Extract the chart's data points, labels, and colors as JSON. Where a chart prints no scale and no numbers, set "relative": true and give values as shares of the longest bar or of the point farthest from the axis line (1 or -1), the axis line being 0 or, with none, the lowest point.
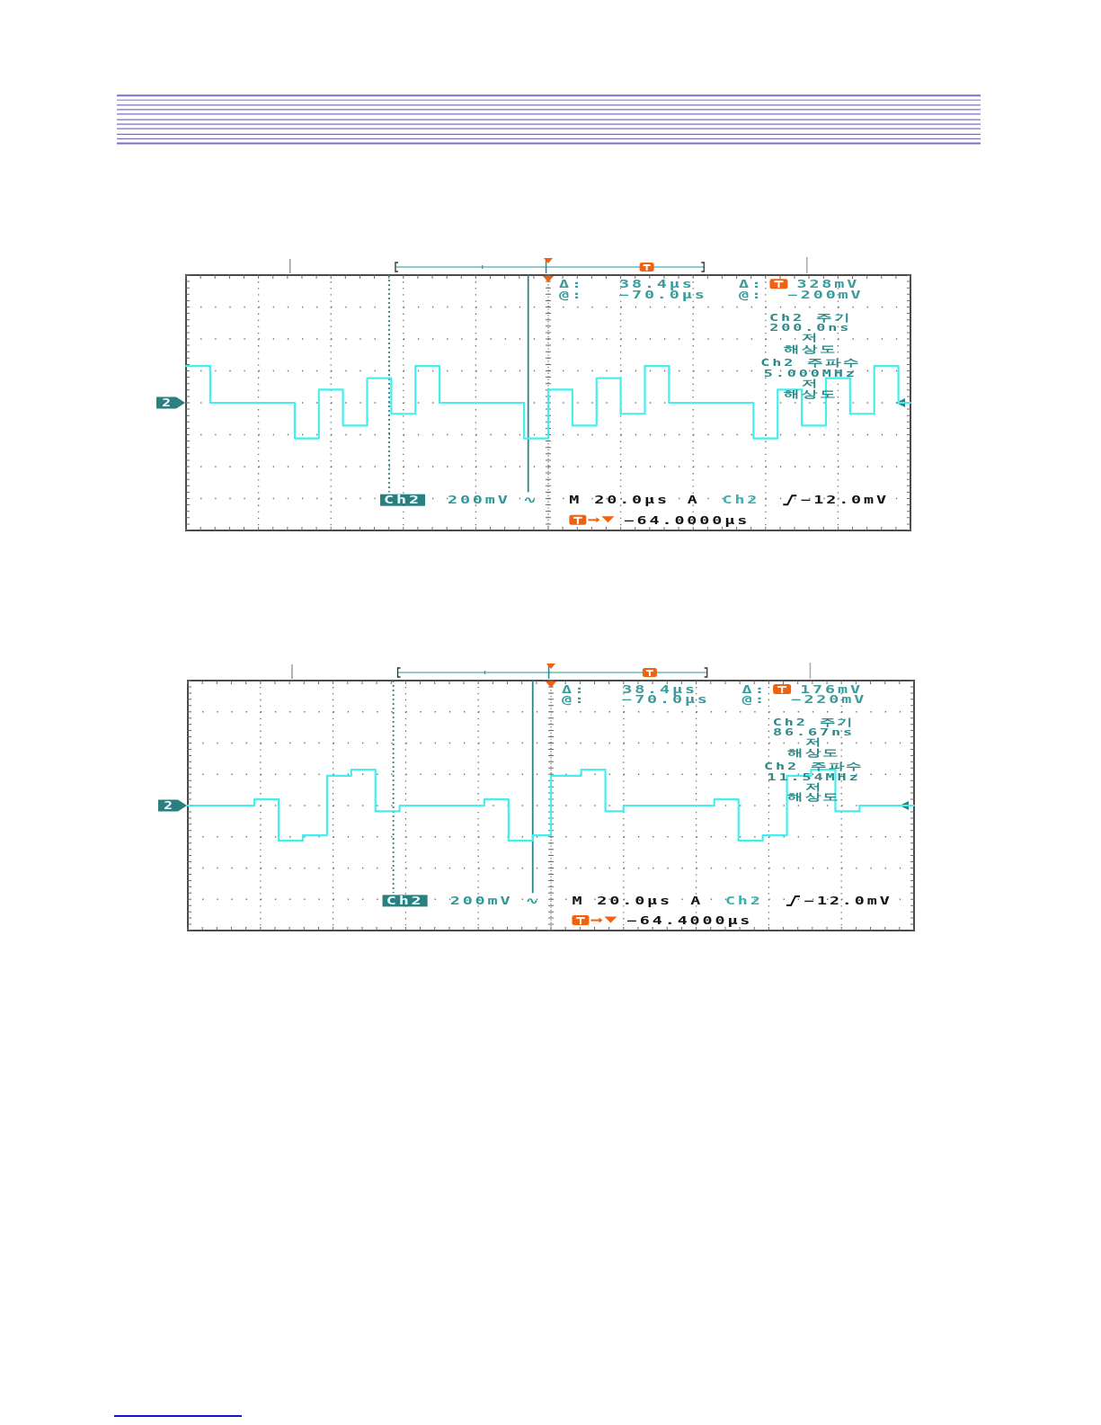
{
  "chart_data": [
    {
      "type": "step",
      "relative": true,
      "color": "#45eeee",
      "grid": true,
      "categories": [
        null,
        null,
        null,
        null,
        null,
        null,
        null,
        null,
        null,
        null,
        null,
        null,
        null,
        null,
        null,
        null,
        null,
        null,
        null,
        null,
        null,
        null,
        null,
        null,
        null,
        null,
        null,
        null,
        null,
        null,
        null,
        null,
        null,
        null,
        null,
        null,
        null,
        null,
        null,
        null,
        null,
        null,
        null,
        null,
        null,
        null,
        null,
        null,
        null,
        null,
        null,
        null,
        null,
        null,
        null,
        null,
        null,
        null,
        null,
        null,
        null,
        null,
        null,
        null,
        null,
        null,
        null,
        null,
        null,
        null,
        null,
        null,
        null,
        null,
        null,
        null,
        null,
        null,
        null,
        null,
        null,
        null,
        null,
        null,
        null,
        null,
        null,
        null,
        null,
        null,
        null,
        null,
        null,
        null,
        null,
        null,
        null,
        null,
        null,
        null,
        null,
        null,
        null,
        null,
        null,
        null,
        null,
        null,
        null,
        null,
        null,
        null,
        null,
        null,
        null,
        null,
        null,
        null,
        null,
        null,
        null
      ],
      "values": [
        1,
        1,
        1,
        1,
        0,
        0,
        0,
        0,
        0,
        0,
        0,
        0,
        0,
        0,
        0,
        0,
        0,
        0,
        -0.97,
        -0.97,
        -0.97,
        -0.97,
        0.36,
        0.36,
        0.36,
        0.36,
        -0.62,
        -0.62,
        -0.62,
        -0.62,
        0.67,
        0.67,
        0.67,
        0.67,
        -0.3,
        -0.3,
        -0.3,
        -0.3,
        1,
        1,
        1,
        1,
        0,
        0,
        0,
        0,
        0,
        0,
        0,
        0,
        0,
        0,
        0,
        0,
        0,
        0,
        -0.97,
        -0.97,
        -0.97,
        -0.97,
        0.36,
        0.36,
        0.36,
        0.36,
        -0.62,
        -0.62,
        -0.62,
        -0.62,
        0.67,
        0.67,
        0.67,
        0.67,
        -0.3,
        -0.3,
        -0.3,
        -0.3,
        1,
        1,
        1,
        1,
        0,
        0,
        0,
        0,
        0,
        0,
        0,
        0,
        0,
        0,
        0,
        0,
        0,
        0,
        -0.97,
        -0.97,
        -0.97,
        -0.97,
        0.36,
        0.36,
        0.36,
        0.36,
        -0.62,
        -0.62,
        -0.62,
        -0.62,
        0.67,
        0.67,
        0.67,
        0.67,
        -0.3,
        -0.3,
        -0.3,
        -0.3,
        1,
        1,
        1,
        1,
        0,
        0,
        0
      ],
      "annotations": [
        "Δ:",
        "38.4µs",
        "@:",
        "−70.0µs",
        "Δ:",
        "328mV",
        "@:",
        "−200mV",
        "Ch2 주기",
        "200.0ns",
        "저",
        "해상도",
        "Ch2 주파수",
        "5.000MHz",
        "저",
        "해상도",
        "Ch2",
        "200mV ∿",
        "M 20.0µs",
        "A",
        "Ch2",
        "−12.0mV",
        "−64.0000µs",
        "2"
      ]
    },
    {
      "type": "step",
      "relative": true,
      "color": "#45eeee",
      "grid": true,
      "categories": [
        null,
        null,
        null,
        null,
        null,
        null,
        null,
        null,
        null,
        null,
        null,
        null,
        null,
        null,
        null,
        null,
        null,
        null,
        null,
        null,
        null,
        null,
        null,
        null,
        null,
        null,
        null,
        null,
        null,
        null,
        null,
        null,
        null,
        null,
        null,
        null,
        null,
        null,
        null,
        null,
        null,
        null,
        null,
        null,
        null,
        null,
        null,
        null,
        null,
        null,
        null,
        null,
        null,
        null,
        null,
        null,
        null,
        null,
        null,
        null,
        null,
        null,
        null,
        null,
        null,
        null,
        null,
        null,
        null,
        null,
        null,
        null,
        null,
        null,
        null,
        null,
        null,
        null,
        null,
        null,
        null,
        null,
        null,
        null,
        null,
        null,
        null,
        null,
        null,
        null,
        null,
        null,
        null,
        null,
        null,
        null,
        null,
        null,
        null,
        null,
        null,
        null,
        null,
        null,
        null,
        null,
        null,
        null,
        null,
        null,
        null,
        null,
        null,
        null,
        null,
        null,
        null,
        null,
        null,
        null,
        null
      ],
      "values": [
        0,
        0,
        0,
        0,
        0,
        0,
        0,
        0,
        0,
        0,
        0,
        0.17,
        0.17,
        0.17,
        0.17,
        -0.98,
        -0.98,
        -0.98,
        -0.98,
        -0.83,
        -0.83,
        -0.83,
        -0.83,
        0.83,
        0.83,
        0.83,
        0.83,
        1,
        1,
        1,
        1,
        -0.16,
        -0.16,
        -0.16,
        -0.16,
        0,
        0,
        0,
        0,
        0,
        0,
        0,
        0,
        0,
        0,
        0,
        0,
        0,
        0,
        0.17,
        0.17,
        0.17,
        0.17,
        -0.98,
        -0.98,
        -0.98,
        -0.98,
        -0.83,
        -0.83,
        -0.83,
        0.83,
        0.83,
        0.83,
        0.83,
        0.83,
        1,
        1,
        1,
        1,
        -0.16,
        -0.16,
        -0.16,
        0,
        0,
        0,
        0,
        0,
        0,
        0,
        0,
        0,
        0,
        0,
        0,
        0,
        0,
        0,
        0.17,
        0.17,
        0.17,
        0.17,
        -0.98,
        -0.98,
        -0.98,
        -0.98,
        -0.83,
        -0.83,
        -0.83,
        -0.83,
        0.83,
        0.83,
        0.83,
        0.83,
        1,
        1,
        1,
        1,
        -0.16,
        -0.16,
        -0.16,
        -0.16,
        0,
        0,
        0,
        0,
        0,
        0,
        0,
        0,
        0,
        0
      ],
      "annotations": [
        "Δ:",
        "38.4µs",
        "@:",
        "−70.0µs",
        "Δ:",
        "176mV",
        "@:",
        "−220mV",
        "Ch2 주기",
        "86.67ns",
        "저",
        "해상도",
        "Ch2 주파수",
        "11.54MHz",
        "저",
        "해상도",
        "Ch2",
        "200mV ∿",
        "M 20.0µs",
        "A",
        "Ch2",
        "−12.0mV",
        "−64.4000µs",
        "2"
      ]
    }
  ]
}
